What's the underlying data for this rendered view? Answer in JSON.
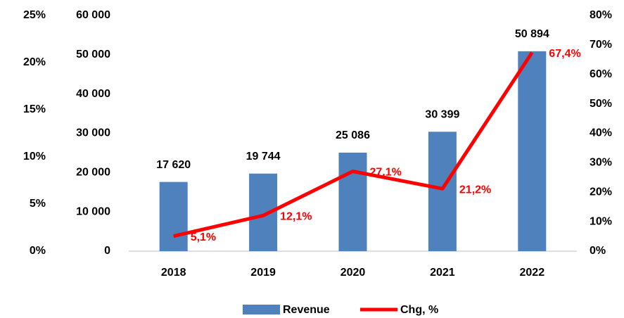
{
  "chart_data": {
    "type": "bar_line",
    "categories": [
      "2018",
      "2019",
      "2020",
      "2021",
      "2022"
    ],
    "series": [
      {
        "name": "Revenue",
        "color": "#4f81bd",
        "type": "bar",
        "axis": "y",
        "values": [
          17620,
          19744,
          25086,
          30399,
          50894
        ],
        "value_labels": [
          "17 620",
          "19 744",
          "25 086",
          "30 399",
          "50 894"
        ]
      },
      {
        "name": "Chg, %",
        "color": "#ff0000",
        "type": "line",
        "axis": "y2",
        "values": [
          5.1,
          12.1,
          27.1,
          21.2,
          67.4
        ],
        "value_labels": [
          "5,1%",
          "12,1%",
          "27,1%",
          "21,2%",
          "67,4%"
        ]
      }
    ],
    "ylim": [
      0,
      60000
    ],
    "yticks": [
      0,
      {
        "value": 10000,
        "label": "10 000"
      },
      {
        "value": 20000,
        "label": "20 000"
      },
      {
        "value": 30000,
        "label": "30 000"
      },
      {
        "value": 40000,
        "label": "40 000"
      },
      {
        "value": 50000,
        "label": "50 000"
      },
      {
        "value": 60000,
        "label": "60 000"
      }
    ],
    "y2lim": [
      0,
      80
    ],
    "y2ticks": [
      {
        "value": 0,
        "label": "0%"
      },
      {
        "value": 10,
        "label": "10%"
      },
      {
        "value": 20,
        "label": "20%"
      },
      {
        "value": 30,
        "label": "30%"
      },
      {
        "value": 40,
        "label": "40%"
      },
      {
        "value": 50,
        "label": "50%"
      },
      {
        "value": 60,
        "label": "60%"
      },
      {
        "value": 70,
        "label": "70%"
      },
      {
        "value": 80,
        "label": "80%"
      }
    ],
    "y3lim": [
      0,
      25
    ],
    "y3ticks": [
      {
        "value": 0,
        "label": "0%"
      },
      {
        "value": 5,
        "label": "5%"
      },
      {
        "value": 10,
        "label": "10%"
      },
      {
        "value": 15,
        "label": "15%"
      },
      {
        "value": 20,
        "label": "20%"
      },
      {
        "value": 25,
        "label": "25%"
      }
    ],
    "legend": "bottom"
  }
}
